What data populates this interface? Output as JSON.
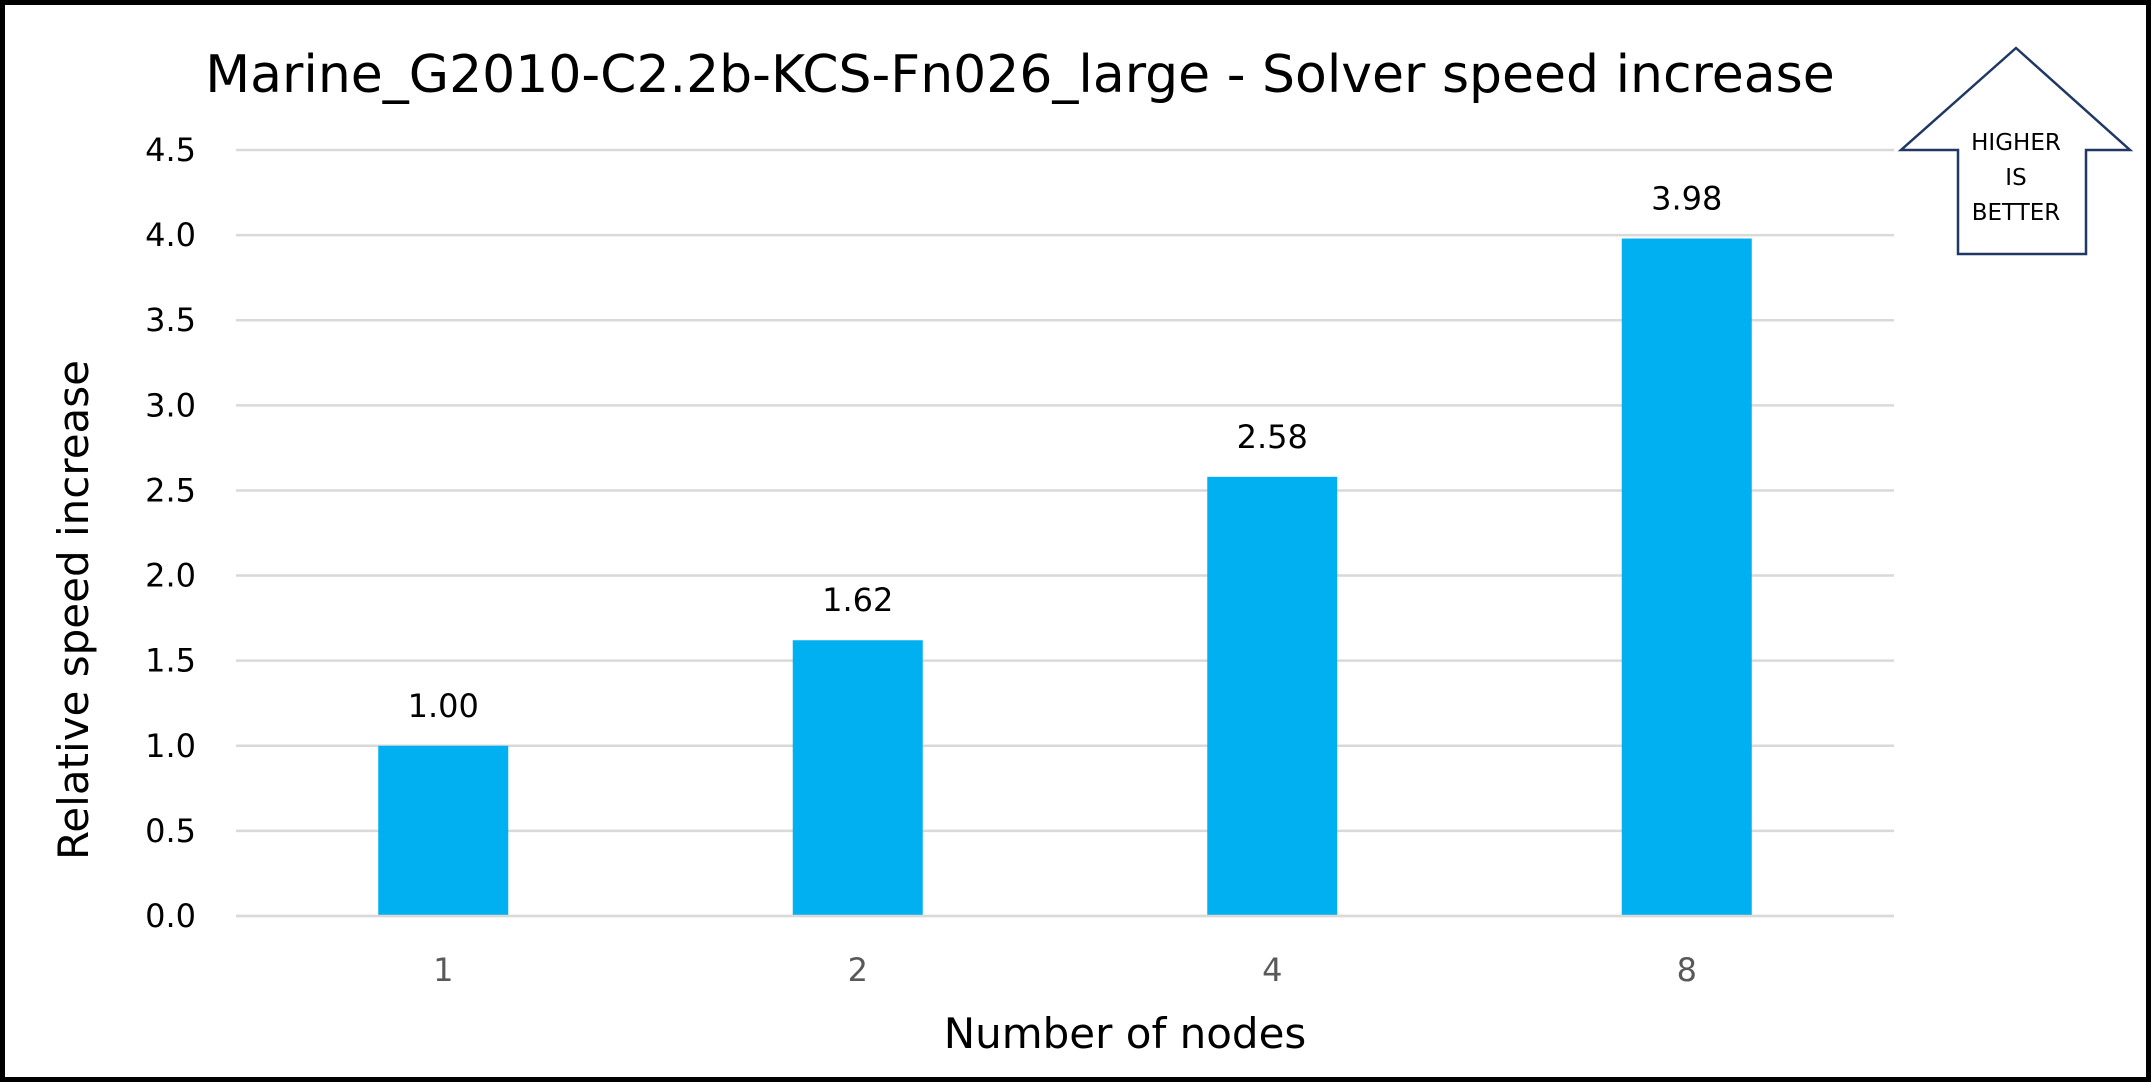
{
  "chart_data": {
    "type": "bar",
    "title": "Marine_G2010-C2.2b-KCS-Fn026_large - Solver speed increase",
    "xlabel": "Number of nodes",
    "ylabel": "Relative speed increase",
    "categories": [
      "1",
      "2",
      "4",
      "8"
    ],
    "values": [
      1.0,
      1.62,
      2.58,
      3.98
    ],
    "data_labels": [
      "1.00",
      "1.62",
      "2.58",
      "3.98"
    ],
    "ylim": [
      0,
      4.5
    ],
    "yticks": [
      0.0,
      0.5,
      1.0,
      1.5,
      2.0,
      2.5,
      3.0,
      3.5,
      4.0,
      4.5
    ],
    "ytick_labels": [
      "0.0",
      "0.5",
      "1.0",
      "1.5",
      "2.0",
      "2.5",
      "3.0",
      "3.5",
      "4.0",
      "4.5"
    ],
    "grid": true,
    "bar_color": "#00B0F0",
    "grid_color": "#D9D9D9"
  },
  "callout": {
    "lines": [
      "HIGHER",
      "IS",
      "BETTER"
    ],
    "icon": "up-arrow-icon",
    "stroke_color": "#1F3864"
  }
}
